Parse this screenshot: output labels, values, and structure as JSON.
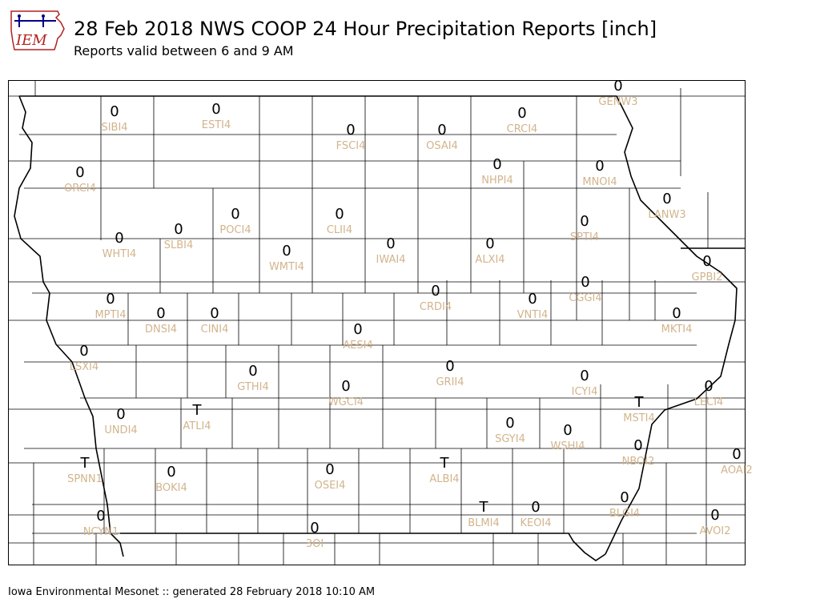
{
  "logo": {
    "text": "IEM"
  },
  "header": {
    "title": "28 Feb 2018 NWS COOP 24 Hour Precipitation Reports [inch]",
    "subtitle": "Reports valid between 6 and 9 AM"
  },
  "footer": {
    "text": "Iowa Environmental Mesonet :: generated 28 February 2018 10:10 AM"
  },
  "colors": {
    "value": "#000000",
    "station_id": "#d2b48c",
    "border": "#000000"
  },
  "stations": [
    {
      "id": "SIBI4",
      "value": "0"
    },
    {
      "id": "ESTI4",
      "value": "0"
    },
    {
      "id": "FSCI4",
      "value": "0"
    },
    {
      "id": "OSAI4",
      "value": "0"
    },
    {
      "id": "CRCI4",
      "value": "0"
    },
    {
      "id": "GENW3",
      "value": "0"
    },
    {
      "id": "ORCI4",
      "value": "0"
    },
    {
      "id": "NHPI4",
      "value": "0"
    },
    {
      "id": "MNOI4",
      "value": "0"
    },
    {
      "id": "LANW3",
      "value": "0"
    },
    {
      "id": "POCI4",
      "value": "0"
    },
    {
      "id": "CLII4",
      "value": "0"
    },
    {
      "id": "SLBI4",
      "value": "0"
    },
    {
      "id": "SPTI4",
      "value": "0"
    },
    {
      "id": "WHTI4",
      "value": "0"
    },
    {
      "id": "WMTI4",
      "value": "0"
    },
    {
      "id": "IWAI4",
      "value": "0"
    },
    {
      "id": "ALXI4",
      "value": "0"
    },
    {
      "id": "GPBI2",
      "value": "0"
    },
    {
      "id": "CRDI4",
      "value": "0"
    },
    {
      "id": "CGGI4",
      "value": "0"
    },
    {
      "id": "MPTI4",
      "value": "0"
    },
    {
      "id": "VNTI4",
      "value": "0"
    },
    {
      "id": "DNSI4",
      "value": "0"
    },
    {
      "id": "CINI4",
      "value": "0"
    },
    {
      "id": "MKTI4",
      "value": "0"
    },
    {
      "id": "AESI4",
      "value": "0"
    },
    {
      "id": "LSXI4",
      "value": "0"
    },
    {
      "id": "GRII4",
      "value": "0"
    },
    {
      "id": "GTHI4",
      "value": "0"
    },
    {
      "id": "ICYI4",
      "value": "0"
    },
    {
      "id": "WGCI4",
      "value": "0"
    },
    {
      "id": "LECI4",
      "value": "0"
    },
    {
      "id": "MSTI4",
      "value": "T"
    },
    {
      "id": "ATLI4",
      "value": "T"
    },
    {
      "id": "UNDI4",
      "value": "0"
    },
    {
      "id": "SGYI4",
      "value": "0"
    },
    {
      "id": "WSHI4",
      "value": "0"
    },
    {
      "id": "NBOI2",
      "value": "0"
    },
    {
      "id": "AOAI2",
      "value": "0"
    },
    {
      "id": "SPNN1",
      "value": "T"
    },
    {
      "id": "ALBI4",
      "value": "T"
    },
    {
      "id": "OSEI4",
      "value": "0"
    },
    {
      "id": "BOKI4",
      "value": "0"
    },
    {
      "id": "BLGI4",
      "value": "0"
    },
    {
      "id": "BLMI4",
      "value": "T"
    },
    {
      "id": "KEOI4",
      "value": "0"
    },
    {
      "id": "AVOI2",
      "value": "0"
    },
    {
      "id": "NCYN1",
      "value": "0"
    },
    {
      "id": "3OI",
      "value": "0"
    }
  ]
}
